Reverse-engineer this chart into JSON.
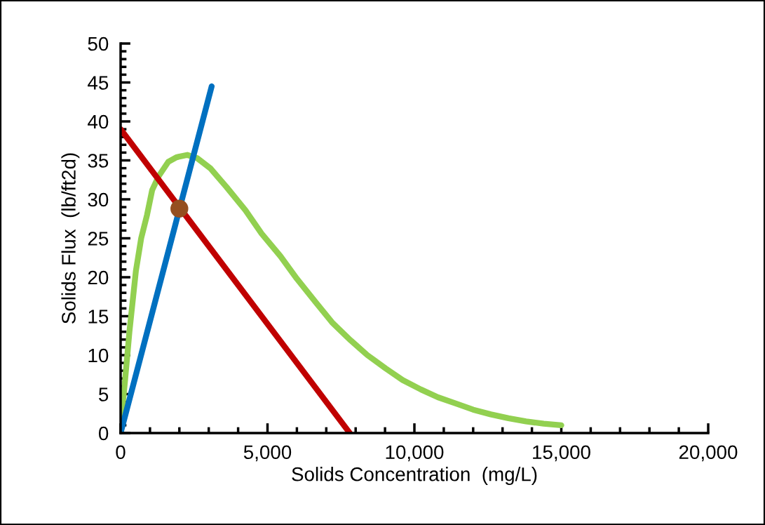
{
  "chart_data": {
    "type": "line",
    "xlabel": "Solids Concentration  (mg/L)",
    "ylabel": "Solids Flux  (lb/ft2d)",
    "xlim": [
      0,
      20000
    ],
    "ylim": [
      0,
      50
    ],
    "xticks": [
      0,
      {
        "value": 5000,
        "label": "5,000"
      },
      {
        "value": 10000,
        "label": "10,000"
      },
      {
        "value": 15000,
        "label": "15,000"
      },
      {
        "value": 20000,
        "label": "20,000"
      }
    ],
    "yticks": [
      0,
      5,
      10,
      15,
      20,
      25,
      30,
      35,
      40,
      45,
      50
    ],
    "grid": false,
    "legend": false,
    "marker": "none",
    "line_style": "solid",
    "series": [
      {
        "color": "#92d050",
        "x": [
          0,
          80,
          155,
          300,
          520,
          700,
          900,
          1075,
          1300,
          1620,
          1900,
          2270,
          2600,
          3050,
          3600,
          4250,
          4800,
          5440,
          6000,
          6640,
          7200,
          7830,
          8400,
          9020,
          9600,
          10220,
          10800,
          11410,
          12000,
          12600,
          13200,
          13800,
          14400,
          15000
        ],
        "values": [
          0,
          4,
          6.9,
          13,
          20.8,
          25,
          28,
          31.2,
          33,
          34.8,
          35.4,
          35.7,
          35.3,
          34,
          31.6,
          28.6,
          25.6,
          22.7,
          19.8,
          16.8,
          14.2,
          11.9,
          10,
          8.3,
          6.8,
          5.6,
          4.6,
          3.8,
          3.0,
          2.4,
          1.9,
          1.5,
          1.2,
          1.0
        ]
      },
      {
        "color": "#0070c0",
        "x": [
          0,
          3100
        ],
        "values": [
          0,
          44.5
        ]
      },
      {
        "color": "#c00000",
        "x": [
          0,
          7800
        ],
        "values": [
          39,
          0
        ]
      },
      {
        "type": "scatter",
        "marker": "circle",
        "color": "#954f1f",
        "x": [
          2000
        ],
        "values": [
          28.8
        ]
      }
    ]
  }
}
